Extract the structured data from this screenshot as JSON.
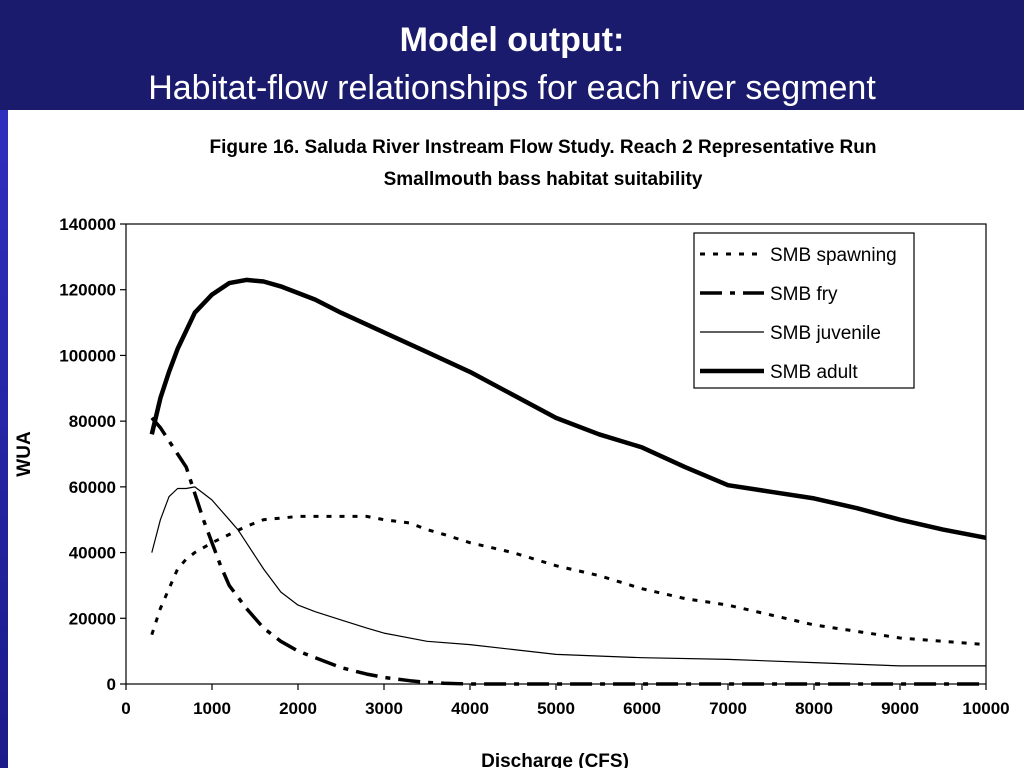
{
  "slide": {
    "title": "Model output:",
    "subtitle": "Habitat-flow relationships for each river segment"
  },
  "chart_data": {
    "type": "line",
    "title": "Figure 16.  Saluda River Instream Flow Study. Reach 2 Representative Run",
    "subtitle": "Smallmouth bass habitat suitability",
    "xlabel": "Discharge (CFS)",
    "ylabel": "WUA",
    "xlim": [
      0,
      10000
    ],
    "ylim": [
      0,
      140000
    ],
    "xticks": [
      0,
      1000,
      2000,
      3000,
      4000,
      5000,
      6000,
      7000,
      8000,
      9000,
      10000
    ],
    "yticks": [
      0,
      20000,
      40000,
      60000,
      80000,
      100000,
      120000,
      140000
    ],
    "grid": false,
    "legend_position": "top-right",
    "series": [
      {
        "name": "SMB spawning",
        "style": "dotted",
        "x": [
          300,
          400,
          500,
          600,
          700,
          800,
          1000,
          1200,
          1400,
          1600,
          1800,
          2000,
          2200,
          2500,
          2800,
          3000,
          3300,
          3500,
          3700,
          4000,
          4500,
          5000,
          5500,
          6000,
          6500,
          7000,
          7500,
          8000,
          8500,
          9000,
          9500,
          10000
        ],
        "y": [
          15000,
          23000,
          29000,
          35000,
          38000,
          40000,
          43000,
          45500,
          48000,
          50000,
          50500,
          51000,
          51000,
          51000,
          51000,
          50000,
          49000,
          47000,
          45500,
          43000,
          40000,
          36000,
          33000,
          29000,
          26000,
          24000,
          21000,
          18000,
          16000,
          14000,
          13000,
          12000
        ]
      },
      {
        "name": "SMB fry",
        "style": "dash-dot",
        "x": [
          300,
          400,
          500,
          600,
          700,
          800,
          900,
          1000,
          1100,
          1200,
          1400,
          1600,
          1800,
          2000,
          2200,
          2500,
          2800,
          3000,
          3300,
          3500,
          3700,
          4000,
          4500,
          5000,
          6000,
          7000,
          8000,
          9000,
          10000
        ],
        "y": [
          81000,
          78000,
          74000,
          70000,
          66000,
          58000,
          50000,
          43000,
          36000,
          30000,
          23000,
          17000,
          13000,
          10000,
          8000,
          5000,
          3000,
          2000,
          1000,
          500,
          200,
          0,
          0,
          0,
          0,
          0,
          0,
          0,
          0
        ]
      },
      {
        "name": "SMB juvenile",
        "style": "thin",
        "x": [
          300,
          400,
          500,
          600,
          700,
          800,
          900,
          1000,
          1100,
          1200,
          1300,
          1400,
          1600,
          1800,
          2000,
          2200,
          2500,
          2800,
          3000,
          3500,
          4000,
          4500,
          5000,
          6000,
          7000,
          8000,
          9000,
          10000
        ],
        "y": [
          40000,
          50000,
          57000,
          59500,
          59500,
          60000,
          58000,
          56000,
          53000,
          50000,
          47000,
          43000,
          35000,
          28000,
          24000,
          22000,
          19500,
          17000,
          15500,
          13000,
          12000,
          10500,
          9000,
          8000,
          7500,
          6500,
          5500,
          5500
        ]
      },
      {
        "name": "SMB adult",
        "style": "thick",
        "x": [
          300,
          400,
          500,
          600,
          800,
          1000,
          1200,
          1400,
          1600,
          1800,
          2000,
          2200,
          2500,
          3000,
          3500,
          4000,
          4500,
          5000,
          5500,
          6000,
          6500,
          7000,
          7500,
          8000,
          8500,
          9000,
          9500,
          10000
        ],
        "y": [
          76000,
          87000,
          95000,
          102000,
          113000,
          118500,
          122000,
          123000,
          122500,
          121000,
          119000,
          117000,
          113000,
          107000,
          101000,
          95000,
          88000,
          81000,
          76000,
          72000,
          66000,
          60500,
          58500,
          56500,
          53500,
          50000,
          47000,
          44500
        ]
      }
    ]
  }
}
